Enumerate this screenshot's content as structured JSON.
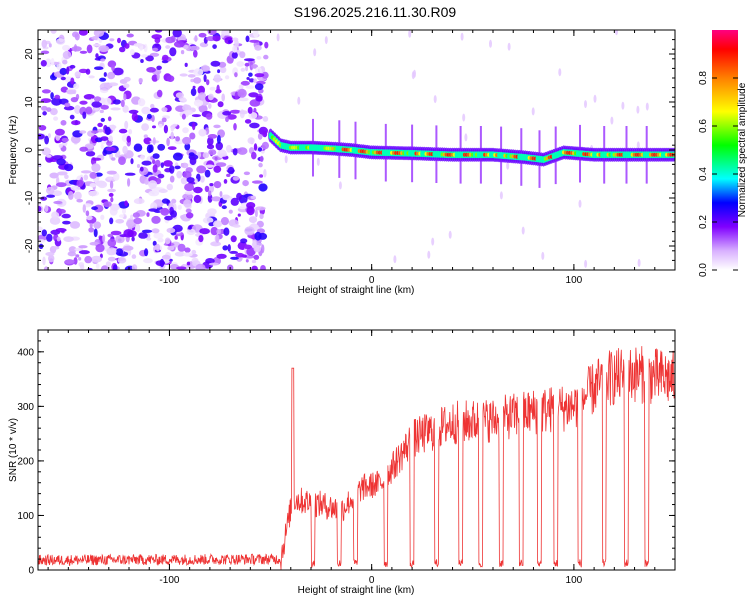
{
  "title": "S196.2025.216.11.30.R09",
  "chart_data": [
    {
      "type": "heatmap",
      "xlabel": "Height of straight line (km)",
      "ylabel": "Frequency (Hz)",
      "xlim": [
        -165,
        150
      ],
      "ylim": [
        -25,
        25
      ],
      "xticks": [
        -100,
        0,
        100
      ],
      "yticks": [
        -20,
        -10,
        0,
        10,
        20
      ],
      "colorbar": {
        "label": "Normalized spectral amplitude",
        "range": [
          0,
          1
        ],
        "ticks": [
          0.0,
          0.2,
          0.4,
          0.6,
          0.8
        ]
      },
      "noise_region_x": [
        -165,
        -52
      ],
      "signal_track": [
        {
          "x": -50,
          "f": 3
        },
        {
          "x": -45,
          "f": 1
        },
        {
          "x": -40,
          "f": 0.5
        },
        {
          "x": -30,
          "f": 0.5
        },
        {
          "x": -20,
          "f": 0.3
        },
        {
          "x": -10,
          "f": 0
        },
        {
          "x": 0,
          "f": -0.5
        },
        {
          "x": 20,
          "f": -0.7
        },
        {
          "x": 40,
          "f": -1
        },
        {
          "x": 60,
          "f": -1
        },
        {
          "x": 75,
          "f": -1.5
        },
        {
          "x": 85,
          "f": -2
        },
        {
          "x": 95,
          "f": -0.5
        },
        {
          "x": 110,
          "f": -1
        },
        {
          "x": 130,
          "f": -1
        },
        {
          "x": 150,
          "f": -1
        }
      ],
      "signal_peak_amplitude": 0.9
    },
    {
      "type": "line",
      "xlabel": "Height of straight line (km)",
      "ylabel": "SNR (10 * v/v)",
      "xlim": [
        -165,
        150
      ],
      "ylim": [
        0,
        440
      ],
      "xticks": [
        -100,
        0,
        100
      ],
      "yticks": [
        0,
        100,
        200,
        300,
        400
      ],
      "line_color": "#ee3333",
      "baseline_level": 20,
      "spike": {
        "x": -39,
        "y": 370
      },
      "trend": [
        {
          "x": -165,
          "y": 18
        },
        {
          "x": -45,
          "y": 20
        },
        {
          "x": -39,
          "y": 130
        },
        {
          "x": -25,
          "y": 120
        },
        {
          "x": -15,
          "y": 110
        },
        {
          "x": -5,
          "y": 150
        },
        {
          "x": 5,
          "y": 160
        },
        {
          "x": 20,
          "y": 240
        },
        {
          "x": 40,
          "y": 270
        },
        {
          "x": 60,
          "y": 275
        },
        {
          "x": 80,
          "y": 290
        },
        {
          "x": 100,
          "y": 300
        },
        {
          "x": 115,
          "y": 350
        },
        {
          "x": 130,
          "y": 360
        },
        {
          "x": 150,
          "y": 350
        }
      ],
      "dropout_x": [
        -29,
        -16,
        -8,
        7,
        20,
        32,
        44,
        54,
        64,
        74,
        83,
        91,
        103,
        115,
        126,
        136
      ]
    }
  ]
}
